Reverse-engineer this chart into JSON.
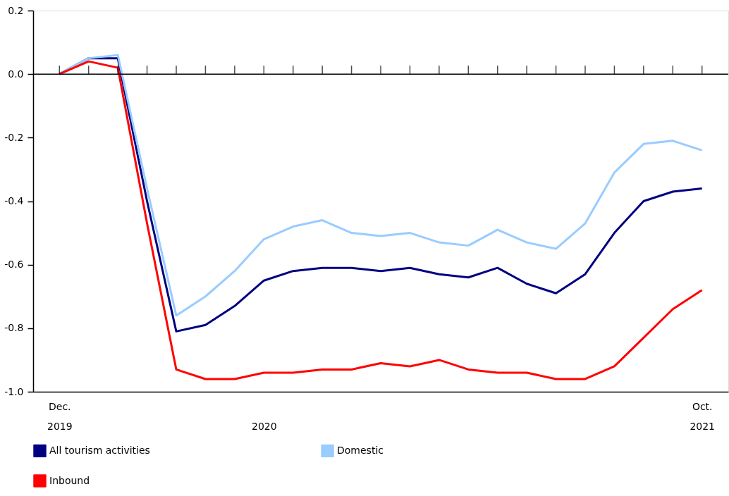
{
  "chart_data": {
    "type": "line",
    "categories": [
      "Dec. 2019",
      null,
      null,
      null,
      null,
      null,
      null,
      "2020",
      null,
      null,
      null,
      null,
      null,
      null,
      null,
      null,
      null,
      null,
      null,
      null,
      null,
      null,
      "Oct. 2021"
    ],
    "series": [
      {
        "name": "All tourism activities",
        "color": "#000080",
        "values": [
          0,
          0.05,
          0.05,
          -0.4,
          -0.81,
          -0.79,
          -0.73,
          -0.65,
          -0.62,
          -0.61,
          -0.61,
          -0.62,
          -0.61,
          -0.63,
          -0.64,
          -0.61,
          -0.66,
          -0.69,
          -0.63,
          -0.5,
          -0.4,
          -0.37,
          -0.36
        ]
      },
      {
        "name": "Domestic",
        "color": "#99ccff",
        "values": [
          0,
          0.05,
          0.06,
          -0.36,
          -0.76,
          -0.7,
          -0.62,
          -0.52,
          -0.48,
          -0.46,
          -0.5,
          -0.51,
          -0.5,
          -0.53,
          -0.54,
          -0.49,
          -0.53,
          -0.55,
          -0.47,
          -0.31,
          -0.22,
          -0.21,
          -0.24
        ]
      },
      {
        "name": "Inbound",
        "color": "#ff0000",
        "values": [
          0,
          0.04,
          0.02,
          -0.47,
          -0.93,
          -0.96,
          -0.96,
          -0.94,
          -0.94,
          -0.93,
          -0.93,
          -0.91,
          -0.92,
          -0.9,
          -0.93,
          -0.94,
          -0.94,
          -0.96,
          -0.96,
          -0.92,
          -0.83,
          -0.74,
          -0.68
        ]
      }
    ],
    "ylim": [
      -1.0,
      0.2
    ],
    "yticks": [
      {
        "value": -1.0,
        "label": "-1.0"
      },
      {
        "value": -0.8,
        "label": "-0.8"
      },
      {
        "value": -0.6,
        "label": "-0.6"
      },
      {
        "value": -0.4,
        "label": "-0.4"
      },
      {
        "value": -0.2,
        "label": "-0.2"
      },
      {
        "value": 0.0,
        "label": "0.0"
      },
      {
        "value": 0.2,
        "label": "0.2"
      }
    ],
    "ref_lines": [
      {
        "axis": "y",
        "value": 0,
        "color": "#000000"
      }
    ],
    "grid": false,
    "legend": "bottom",
    "marker": "none",
    "line_style": "solid"
  }
}
